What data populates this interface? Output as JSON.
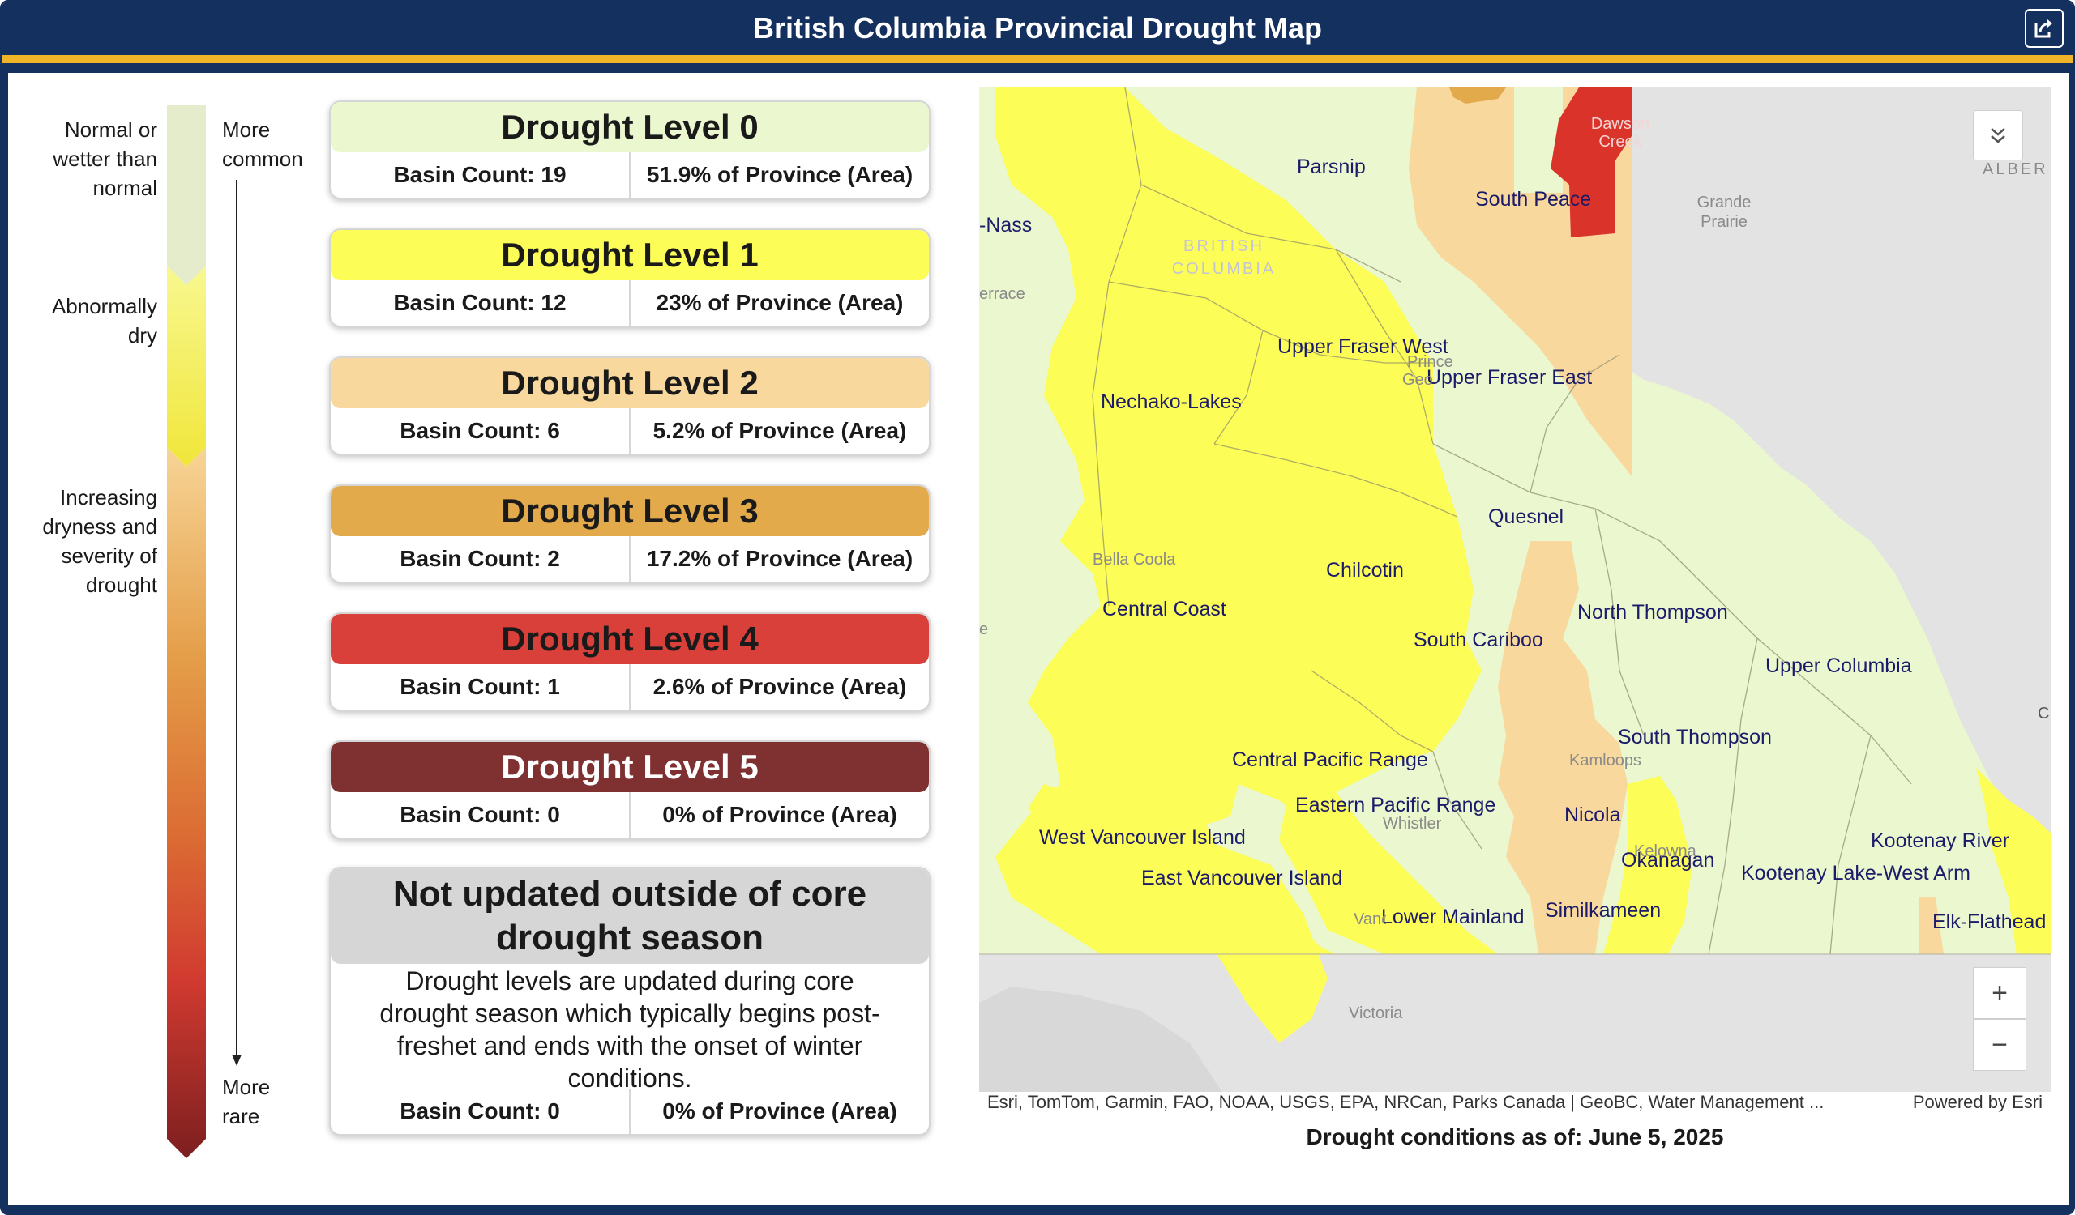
{
  "header": {
    "title": "British Columbia Provincial Drought Map",
    "share_icon": "share-icon"
  },
  "legend": {
    "labels_left": [
      "Normal or wetter than normal",
      "Abnormally dry",
      "Increasing dryness and severity of drought"
    ],
    "more_common": "More common",
    "more_rare": "More rare"
  },
  "levels": [
    {
      "name": "Drought Level 0",
      "basin_count": "Basin Count: 19",
      "area": "51.9% of Province (Area)",
      "color": "#eaf7cf"
    },
    {
      "name": "Drought Level 1",
      "basin_count": "Basin Count: 12",
      "area": "23% of Province (Area)",
      "color": "#fdfd57"
    },
    {
      "name": "Drought Level 2",
      "basin_count": "Basin Count: 6",
      "area": "5.2% of Province (Area)",
      "color": "#f8d89d"
    },
    {
      "name": "Drought Level 3",
      "basin_count": "Basin Count: 2",
      "area": "17.2% of Province (Area)",
      "color": "#e3aa4c"
    },
    {
      "name": "Drought Level 4",
      "basin_count": "Basin Count: 1",
      "area": "2.6% of Province (Area)",
      "color": "#d9403a"
    },
    {
      "name": "Drought Level 5",
      "basin_count": "Basin Count: 0",
      "area": "0% of Province (Area)",
      "color": "#7f3030"
    }
  ],
  "not_updated": {
    "title": "Not updated outside of core drought season",
    "description": "Drought levels are updated during core drought season which typically begins post-freshet and ends with the onset of winter conditions.",
    "basin_count": "Basin Count: 0",
    "area": "0% of Province (Area)"
  },
  "map": {
    "basin_labels": {
      "parsnip": "Parsnip",
      "south_peace": "South Peace",
      "nass": "-Nass",
      "upper_fraser_west": "Upper Fraser West",
      "upper_fraser_east": "Upper Fraser East",
      "nechako_lakes": "Nechako-Lakes",
      "quesnel": "Quesnel",
      "chilcotin": "Chilcotin",
      "central_coast": "Central Coast",
      "north_thompson": "North Thompson",
      "south_cariboo": "South Cariboo",
      "upper_columbia": "Upper Columbia",
      "south_thompson": "South Thompson",
      "central_pacific_range": "Central Pacific Range",
      "eastern_pacific_range": "Eastern Pacific Range",
      "west_vancouver_island": "West Vancouver Island",
      "nicola": "Nicola",
      "kootenay_river": "Kootenay River",
      "okanagan": "Okanagan",
      "kootenay_lake_west_arm": "Kootenay Lake-West Arm",
      "east_vancouver_island": "East Vancouver Island",
      "lower_mainland": "Lower Mainland",
      "similkameen": "Similkameen",
      "elk_flathead": "Elk-Flathead"
    },
    "place_labels": {
      "dawson_creek": "Dawson Creek",
      "grande_prairie": "Grande Prairie",
      "british_columbia": "BRITISH COLUMBIA",
      "alberta": "ALBER",
      "terrace": "errace",
      "prince_george_a": "Prince",
      "prince_george_b": "Geo",
      "bella_coola": "Bella Coola",
      "kamloops": "Kamloops",
      "whistler": "Whistler",
      "kelowna": "Kelowna",
      "vancouver": "Vancouver",
      "victoria": "Victoria",
      "edge_e": "e",
      "edge_c": "C"
    },
    "zoom_in": "+",
    "zoom_out": "−",
    "collapse_icon": "chevron-double-down-icon",
    "attribution": "Esri, TomTom, Garmin, FAO, NOAA, USGS, EPA, NRCan, Parks Canada | GeoBC, Water Management ...",
    "powered_by": "Powered by Esri",
    "as_of": "Drought conditions as of: June 5, 2025"
  }
}
